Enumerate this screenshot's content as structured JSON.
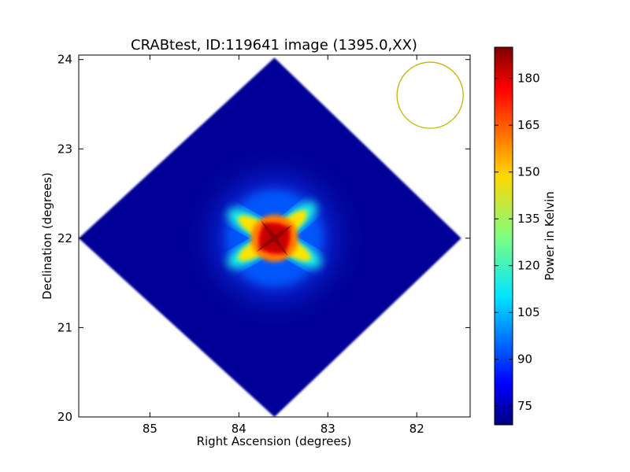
{
  "chart_data": {
    "type": "heatmap",
    "title": "CRABtest, ID:119641 image (1395.0,XX)",
    "xlabel": "Right Ascension (degrees)",
    "ylabel": "Declination (degrees)",
    "xlim": [
      85.8,
      81.4
    ],
    "ylim": [
      20.0,
      24.05
    ],
    "x_ticks": [
      85,
      84,
      83,
      82
    ],
    "y_ticks": [
      20,
      21,
      22,
      23,
      24
    ],
    "x_tick_labels": [
      "85",
      "84",
      "83",
      "82"
    ],
    "y_tick_labels": [
      "20",
      "21",
      "22",
      "23",
      "24"
    ],
    "colorbar": {
      "label": "Power in Kelvin",
      "colormap": "jet",
      "range": [
        69,
        190
      ],
      "ticks": [
        75,
        90,
        105,
        120,
        135,
        150,
        165,
        180
      ],
      "tick_labels": [
        "75",
        "90",
        "105",
        "120",
        "135",
        "150",
        "165",
        "180"
      ]
    },
    "map": {
      "shape": "diamond",
      "center": [
        83.6,
        22.0
      ],
      "vertices": [
        [
          83.6,
          24.02
        ],
        [
          81.5,
          22.0
        ],
        [
          83.6,
          20.0
        ],
        [
          85.8,
          22.0
        ]
      ],
      "background_value": 72,
      "peak_value": 188,
      "peak_position": [
        83.6,
        22.0
      ]
    },
    "beam": {
      "shape": "circle",
      "center": [
        81.85,
        23.6
      ],
      "radius_deg_dec": 0.37,
      "color": "#c8b400"
    },
    "grid": false
  }
}
